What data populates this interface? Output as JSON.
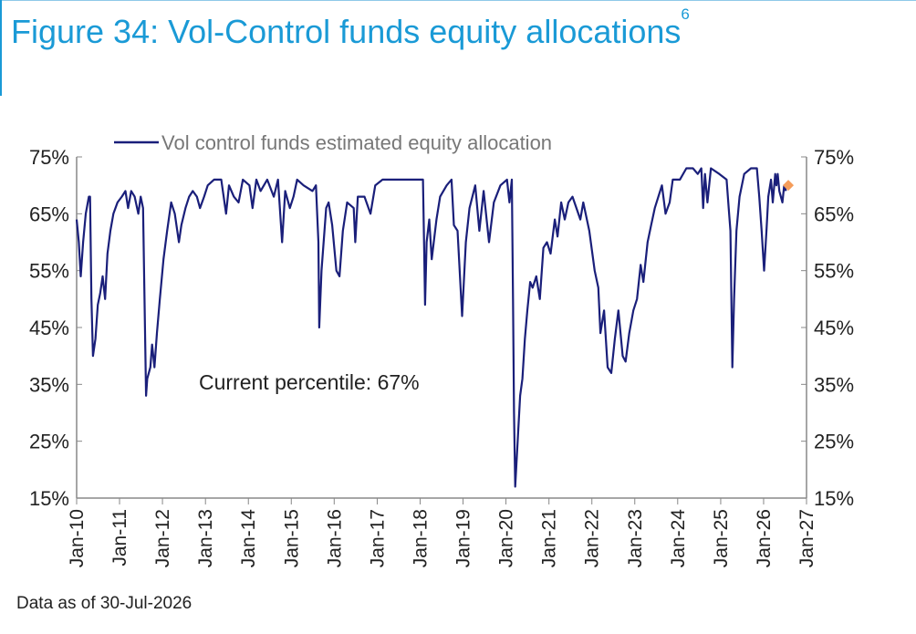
{
  "title": "Figure 34: Vol-Control funds equity allocations",
  "title_superscript": "6",
  "footnote": "Data as of 30-Jul-2026",
  "annotation": "Current percentile: 67%",
  "colors": {
    "title": "#1a9ad6",
    "series": "#1a1f7a",
    "marker": "#f59d5a",
    "axis": "#888888"
  },
  "chart_data": {
    "type": "line",
    "legend": "Vol control funds estimated equity allocation",
    "legend_position": "top",
    "grid": false,
    "ylim": [
      15,
      75
    ],
    "yticks": [
      "15%",
      "25%",
      "35%",
      "45%",
      "55%",
      "65%",
      "75%"
    ],
    "ytick_values": [
      15,
      25,
      35,
      45,
      55,
      65,
      75
    ],
    "xlim": [
      "2010-01-01",
      "2027-01-01"
    ],
    "xticks": [
      "Jan-10",
      "Jan-11",
      "Jan-12",
      "Jan-13",
      "Jan-14",
      "Jan-15",
      "Jan-16",
      "Jan-17",
      "Jan-18",
      "Jan-19",
      "Jan-20",
      "Jan-21",
      "Jan-22",
      "Jan-23",
      "Jan-24",
      "Jan-25",
      "Jan-26",
      "Jan-27"
    ],
    "series": [
      {
        "name": "Vol control funds estimated equity allocation",
        "points": [
          [
            "2010-01-01",
            64
          ],
          [
            "2010-01-20",
            60
          ],
          [
            "2010-02-05",
            54
          ],
          [
            "2010-02-25",
            60
          ],
          [
            "2010-03-20",
            65
          ],
          [
            "2010-04-15",
            68
          ],
          [
            "2010-04-25",
            68
          ],
          [
            "2010-05-07",
            50
          ],
          [
            "2010-05-20",
            40
          ],
          [
            "2010-06-10",
            43
          ],
          [
            "2010-06-30",
            49
          ],
          [
            "2010-07-20",
            51
          ],
          [
            "2010-08-10",
            54
          ],
          [
            "2010-08-31",
            50
          ],
          [
            "2010-09-20",
            58
          ],
          [
            "2010-10-15",
            62
          ],
          [
            "2010-11-10",
            65
          ],
          [
            "2010-12-15",
            67
          ],
          [
            "2011-01-20",
            68
          ],
          [
            "2011-02-20",
            69
          ],
          [
            "2011-03-15",
            66
          ],
          [
            "2011-04-10",
            69
          ],
          [
            "2011-05-10",
            68
          ],
          [
            "2011-06-10",
            65
          ],
          [
            "2011-06-30",
            68
          ],
          [
            "2011-07-20",
            66
          ],
          [
            "2011-08-05",
            45
          ],
          [
            "2011-08-15",
            33
          ],
          [
            "2011-08-25",
            36
          ],
          [
            "2011-09-20",
            38
          ],
          [
            "2011-10-05",
            42
          ],
          [
            "2011-10-25",
            38
          ],
          [
            "2011-11-15",
            44
          ],
          [
            "2011-12-10",
            50
          ],
          [
            "2012-01-10",
            57
          ],
          [
            "2012-02-10",
            62
          ],
          [
            "2012-03-15",
            67
          ],
          [
            "2012-04-15",
            65
          ],
          [
            "2012-05-20",
            60
          ],
          [
            "2012-06-10",
            63
          ],
          [
            "2012-07-15",
            66
          ],
          [
            "2012-08-15",
            68
          ],
          [
            "2012-09-15",
            69
          ],
          [
            "2012-10-20",
            68
          ],
          [
            "2012-11-15",
            66
          ],
          [
            "2012-12-20",
            68
          ],
          [
            "2013-01-20",
            70
          ],
          [
            "2013-03-15",
            71
          ],
          [
            "2013-05-15",
            71
          ],
          [
            "2013-06-25",
            65
          ],
          [
            "2013-07-20",
            70
          ],
          [
            "2013-08-30",
            68
          ],
          [
            "2013-10-10",
            67
          ],
          [
            "2013-11-15",
            71
          ],
          [
            "2014-01-10",
            70
          ],
          [
            "2014-02-05",
            66
          ],
          [
            "2014-03-10",
            71
          ],
          [
            "2014-04-15",
            69
          ],
          [
            "2014-06-10",
            71
          ],
          [
            "2014-08-05",
            68
          ],
          [
            "2014-09-10",
            71
          ],
          [
            "2014-10-15",
            60
          ],
          [
            "2014-11-10",
            69
          ],
          [
            "2014-12-20",
            66
          ],
          [
            "2015-01-20",
            68
          ],
          [
            "2015-02-20",
            71
          ],
          [
            "2015-04-15",
            70
          ],
          [
            "2015-06-30",
            69
          ],
          [
            "2015-07-30",
            70
          ],
          [
            "2015-08-20",
            60
          ],
          [
            "2015-08-27",
            45
          ],
          [
            "2015-09-15",
            55
          ],
          [
            "2015-10-25",
            66
          ],
          [
            "2015-11-15",
            67
          ],
          [
            "2015-12-15",
            63
          ],
          [
            "2016-01-20",
            55
          ],
          [
            "2016-02-15",
            54
          ],
          [
            "2016-03-15",
            62
          ],
          [
            "2016-04-20",
            67
          ],
          [
            "2016-06-15",
            66
          ],
          [
            "2016-06-28",
            60
          ],
          [
            "2016-07-20",
            68
          ],
          [
            "2016-09-15",
            68
          ],
          [
            "2016-11-05",
            65
          ],
          [
            "2016-12-15",
            70
          ],
          [
            "2017-02-15",
            71
          ],
          [
            "2017-05-15",
            71
          ],
          [
            "2017-08-15",
            71
          ],
          [
            "2017-11-15",
            71
          ],
          [
            "2018-01-25",
            71
          ],
          [
            "2018-02-05",
            58
          ],
          [
            "2018-02-12",
            49
          ],
          [
            "2018-02-25",
            60
          ],
          [
            "2018-03-20",
            64
          ],
          [
            "2018-04-10",
            57
          ],
          [
            "2018-05-20",
            64
          ],
          [
            "2018-06-20",
            68
          ],
          [
            "2018-08-15",
            70
          ],
          [
            "2018-09-25",
            71
          ],
          [
            "2018-10-15",
            63
          ],
          [
            "2018-11-15",
            62
          ],
          [
            "2018-12-24",
            47
          ],
          [
            "2019-01-25",
            60
          ],
          [
            "2019-02-25",
            66
          ],
          [
            "2019-04-15",
            70
          ],
          [
            "2019-05-20",
            62
          ],
          [
            "2019-06-25",
            69
          ],
          [
            "2019-08-10",
            60
          ],
          [
            "2019-09-20",
            67
          ],
          [
            "2019-11-15",
            70
          ],
          [
            "2020-01-10",
            71
          ],
          [
            "2020-01-31",
            67
          ],
          [
            "2020-02-20",
            71
          ],
          [
            "2020-03-01",
            50
          ],
          [
            "2020-03-10",
            30
          ],
          [
            "2020-03-20",
            17
          ],
          [
            "2020-04-10",
            25
          ],
          [
            "2020-05-01",
            33
          ],
          [
            "2020-05-20",
            36
          ],
          [
            "2020-06-10",
            43
          ],
          [
            "2020-07-01",
            48
          ],
          [
            "2020-07-25",
            53
          ],
          [
            "2020-08-15",
            52
          ],
          [
            "2020-09-15",
            54
          ],
          [
            "2020-10-15",
            50
          ],
          [
            "2020-11-15",
            59
          ],
          [
            "2020-12-15",
            60
          ],
          [
            "2021-01-15",
            58
          ],
          [
            "2021-02-20",
            64
          ],
          [
            "2021-03-15",
            61
          ],
          [
            "2021-04-15",
            67
          ],
          [
            "2021-05-15",
            64
          ],
          [
            "2021-06-15",
            67
          ],
          [
            "2021-07-20",
            68
          ],
          [
            "2021-09-25",
            64
          ],
          [
            "2021-10-20",
            67
          ],
          [
            "2021-12-10",
            62
          ],
          [
            "2022-01-25",
            55
          ],
          [
            "2022-02-25",
            52
          ],
          [
            "2022-03-15",
            44
          ],
          [
            "2022-04-15",
            48
          ],
          [
            "2022-05-15",
            38
          ],
          [
            "2022-06-15",
            37
          ],
          [
            "2022-07-15",
            43
          ],
          [
            "2022-08-15",
            48
          ],
          [
            "2022-09-20",
            40
          ],
          [
            "2022-10-15",
            39
          ],
          [
            "2022-11-15",
            44
          ],
          [
            "2022-12-20",
            48
          ],
          [
            "2023-01-20",
            50
          ],
          [
            "2023-02-20",
            56
          ],
          [
            "2023-03-15",
            53
          ],
          [
            "2023-04-20",
            60
          ],
          [
            "2023-05-20",
            63
          ],
          [
            "2023-06-20",
            66
          ],
          [
            "2023-08-20",
            70
          ],
          [
            "2023-09-20",
            65
          ],
          [
            "2023-10-25",
            67
          ],
          [
            "2023-11-20",
            71
          ],
          [
            "2024-01-20",
            71
          ],
          [
            "2024-03-15",
            73
          ],
          [
            "2024-05-10",
            73
          ],
          [
            "2024-06-20",
            72
          ],
          [
            "2024-07-20",
            73
          ],
          [
            "2024-08-05",
            66
          ],
          [
            "2024-08-20",
            72
          ],
          [
            "2024-09-10",
            67
          ],
          [
            "2024-10-10",
            73
          ],
          [
            "2024-12-20",
            72
          ],
          [
            "2025-02-20",
            71
          ],
          [
            "2025-03-10",
            66
          ],
          [
            "2025-03-25",
            62
          ],
          [
            "2025-04-05",
            45
          ],
          [
            "2025-04-10",
            38
          ],
          [
            "2025-04-25",
            50
          ],
          [
            "2025-05-15",
            62
          ],
          [
            "2025-06-10",
            68
          ],
          [
            "2025-07-20",
            72
          ],
          [
            "2025-09-15",
            73
          ],
          [
            "2025-11-05",
            73
          ],
          [
            "2025-11-25",
            68
          ],
          [
            "2025-12-15",
            62
          ],
          [
            "2026-01-05",
            55
          ],
          [
            "2026-01-25",
            62
          ],
          [
            "2026-02-10",
            68
          ],
          [
            "2026-03-05",
            71
          ],
          [
            "2026-03-20",
            67
          ],
          [
            "2026-04-10",
            72
          ],
          [
            "2026-04-20",
            70
          ],
          [
            "2026-05-01",
            72
          ],
          [
            "2026-05-15",
            69
          ],
          [
            "2026-06-10",
            67
          ],
          [
            "2026-06-25",
            70
          ],
          [
            "2026-07-10",
            69
          ]
        ]
      }
    ],
    "current_marker": {
      "x": "2026-07-30",
      "y": 70
    }
  }
}
